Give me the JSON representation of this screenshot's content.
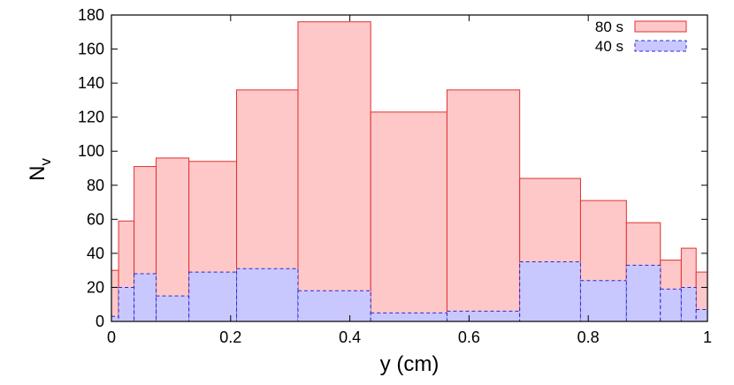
{
  "chart_data": {
    "type": "bar",
    "title": "",
    "xlabel": "y (cm)",
    "ylabel": "N",
    "ylabel_sub": "v",
    "xlim": [
      0,
      1
    ],
    "ylim": [
      0,
      180
    ],
    "xticks": [
      0,
      0.2,
      0.4,
      0.6,
      0.8,
      1
    ],
    "xtick_labels": [
      "0",
      "0.2",
      "0.4",
      "0.6",
      "0.8",
      "1"
    ],
    "yticks": [
      0,
      20,
      40,
      60,
      80,
      100,
      120,
      140,
      160,
      180
    ],
    "ytick_labels": [
      "0",
      "20",
      "40",
      "60",
      "80",
      "100",
      "120",
      "140",
      "160",
      "180"
    ],
    "grid": false,
    "legend_position": "top-right",
    "series": [
      {
        "name": "80 s",
        "color": "#ffc8c8",
        "edge_color": "#e03030",
        "dashed": false,
        "bins": [
          {
            "x0": 0.0,
            "x1": 0.012,
            "value": 30
          },
          {
            "x0": 0.012,
            "x1": 0.038,
            "value": 59
          },
          {
            "x0": 0.038,
            "x1": 0.075,
            "value": 91
          },
          {
            "x0": 0.075,
            "x1": 0.13,
            "value": 96
          },
          {
            "x0": 0.13,
            "x1": 0.21,
            "value": 94
          },
          {
            "x0": 0.21,
            "x1": 0.313,
            "value": 136
          },
          {
            "x0": 0.313,
            "x1": 0.435,
            "value": 176
          },
          {
            "x0": 0.435,
            "x1": 0.563,
            "value": 123
          },
          {
            "x0": 0.563,
            "x1": 0.685,
            "value": 136
          },
          {
            "x0": 0.685,
            "x1": 0.787,
            "value": 84
          },
          {
            "x0": 0.787,
            "x1": 0.864,
            "value": 71
          },
          {
            "x0": 0.864,
            "x1": 0.921,
            "value": 58
          },
          {
            "x0": 0.921,
            "x1": 0.956,
            "value": 36
          },
          {
            "x0": 0.956,
            "x1": 0.981,
            "value": 43
          },
          {
            "x0": 0.981,
            "x1": 1.0,
            "value": 29
          }
        ]
      },
      {
        "name": "40 s",
        "color": "#c8c8ff",
        "edge_color": "#2a2ad0",
        "dashed": true,
        "bins": [
          {
            "x0": 0.0,
            "x1": 0.012,
            "value": 3
          },
          {
            "x0": 0.012,
            "x1": 0.038,
            "value": 20
          },
          {
            "x0": 0.038,
            "x1": 0.075,
            "value": 28
          },
          {
            "x0": 0.075,
            "x1": 0.13,
            "value": 15
          },
          {
            "x0": 0.13,
            "x1": 0.21,
            "value": 29
          },
          {
            "x0": 0.21,
            "x1": 0.313,
            "value": 31
          },
          {
            "x0": 0.313,
            "x1": 0.435,
            "value": 18
          },
          {
            "x0": 0.435,
            "x1": 0.563,
            "value": 5
          },
          {
            "x0": 0.563,
            "x1": 0.685,
            "value": 6
          },
          {
            "x0": 0.685,
            "x1": 0.787,
            "value": 35
          },
          {
            "x0": 0.787,
            "x1": 0.864,
            "value": 24
          },
          {
            "x0": 0.864,
            "x1": 0.921,
            "value": 33
          },
          {
            "x0": 0.921,
            "x1": 0.956,
            "value": 19
          },
          {
            "x0": 0.956,
            "x1": 0.981,
            "value": 20
          },
          {
            "x0": 0.981,
            "x1": 1.0,
            "value": 7
          }
        ]
      }
    ]
  }
}
